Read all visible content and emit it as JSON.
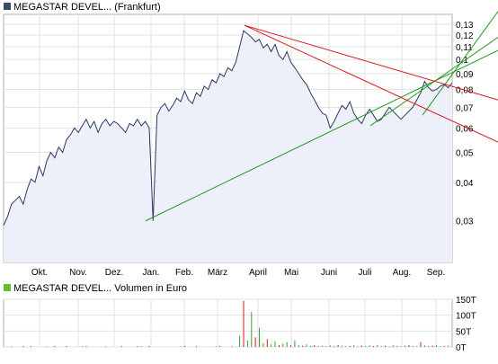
{
  "chart_data": [
    {
      "type": "line",
      "title": "MEGASTAR DEVEL... (Frankfurt)",
      "scale": "log",
      "ylim": [
        0.022,
        0.14
      ],
      "yticks": [
        0.13,
        0.12,
        0.11,
        0.1,
        0.09,
        0.08,
        0.07,
        0.06,
        0.05,
        0.04,
        0.03
      ],
      "ytick_labels": [
        "0,13",
        "0,12",
        "0,11",
        "0,1",
        "0,09",
        "0,08",
        "0,07",
        "0,06",
        "0,05",
        "0,04",
        "0,03"
      ],
      "x_tick_labels": [
        "Okt.",
        "Nov.",
        "Dez.",
        "Jan.",
        "Feb.",
        "März",
        "April",
        "Mai",
        "Juni",
        "Juli",
        "Aug.",
        "Sep."
      ],
      "grid": true,
      "series": [
        {
          "values": [
            0.029,
            0.031,
            0.034,
            0.035,
            0.036,
            0.034,
            0.038,
            0.041,
            0.04,
            0.045,
            0.042,
            0.047,
            0.05,
            0.048,
            0.052,
            0.05,
            0.055,
            0.057,
            0.06,
            0.058,
            0.061,
            0.064,
            0.06,
            0.063,
            0.058,
            0.062,
            0.064,
            0.061,
            0.063,
            0.062,
            0.06,
            0.058,
            0.062,
            0.061,
            0.064,
            0.061,
            0.063,
            0.06,
            0.03,
            0.066,
            0.07,
            0.072,
            0.068,
            0.071,
            0.075,
            0.073,
            0.079,
            0.074,
            0.072,
            0.078,
            0.076,
            0.082,
            0.08,
            0.086,
            0.084,
            0.09,
            0.088,
            0.094,
            0.092,
            0.098,
            0.11,
            0.124,
            0.121,
            0.118,
            0.114,
            0.116,
            0.109,
            0.112,
            0.106,
            0.112,
            0.103,
            0.1,
            0.106,
            0.098,
            0.094,
            0.09,
            0.086,
            0.083,
            0.078,
            0.074,
            0.07,
            0.067,
            0.066,
            0.06,
            0.063,
            0.067,
            0.071,
            0.069,
            0.073,
            0.067,
            0.064,
            0.062,
            0.066,
            0.069,
            0.066,
            0.063,
            0.064,
            0.067,
            0.07,
            0.068,
            0.066,
            0.064,
            0.066,
            0.068,
            0.07,
            0.074,
            0.078,
            0.085,
            0.081,
            0.079,
            0.08,
            0.082,
            0.083,
            0.081,
            0.084
          ]
        }
      ]
    },
    {
      "type": "bar",
      "title": "MEGASTAR DEVEL... Volumen in Euro",
      "ylim": [
        0,
        150000
      ],
      "ytick_labels": [
        "150T",
        "100T",
        "50T",
        "0T"
      ],
      "grid": true,
      "series": [
        {
          "values": [
            0,
            0,
            2000,
            0,
            0,
            3000,
            0,
            2500,
            0,
            0,
            0,
            2000,
            0,
            3000,
            0,
            0,
            2500,
            0,
            0,
            0,
            2000,
            3000,
            0,
            0,
            0,
            0,
            2000,
            0,
            0,
            0,
            3000,
            0,
            0,
            0,
            2500,
            2000,
            0,
            3000,
            0,
            0,
            0,
            0,
            0,
            0,
            0,
            2000,
            3000,
            0,
            0,
            2500,
            0,
            0,
            0,
            0,
            2000,
            3000,
            0,
            0,
            2000,
            0,
            35000,
            145000,
            20000,
            110000,
            30000,
            60000,
            12000,
            25000,
            8000,
            18000,
            6000,
            10000,
            15000,
            5000,
            20000,
            6000,
            4000,
            8000,
            3000,
            6000,
            2500,
            4000,
            2000,
            5000,
            3000,
            6000,
            4000,
            2000,
            3000,
            5000,
            2000,
            4000,
            3000,
            5000,
            2500,
            6000,
            3000,
            4000,
            2000,
            5000,
            3000,
            2000,
            4000,
            6000,
            3000,
            2000,
            15000,
            5000,
            3000,
            4000,
            6000,
            2000,
            3000,
            4000,
            2000
          ]
        }
      ]
    }
  ]
}
